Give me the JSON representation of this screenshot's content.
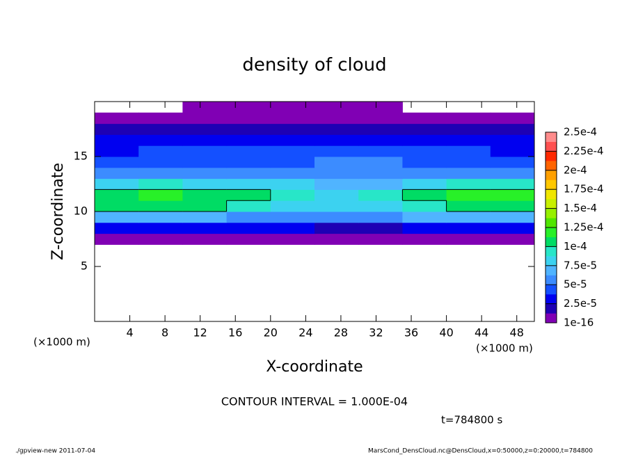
{
  "chart_data": {
    "type": "heatmap",
    "title": "density of cloud",
    "x_label": "X-coordinate",
    "y_label": "Z-coordinate",
    "x_unit": "(×1000 m)",
    "y_unit": "(×1000 m)",
    "contour_note": "CONTOUR INTERVAL = 1.000E-04",
    "time_note": "t=784800 s",
    "footer_left": "./gpview-new   2011-07-04",
    "footer_right": "MarsCond_DensCloud.nc@DensCloud,x=0:50000,z=0:20000,t=784800",
    "xlim": [
      0,
      50
    ],
    "xticks": [
      4,
      8,
      12,
      16,
      20,
      24,
      28,
      32,
      36,
      40,
      44,
      48
    ],
    "ylim": [
      0,
      20
    ],
    "yticks": [
      5,
      10,
      15
    ],
    "x": [
      2.5,
      7.5,
      12.5,
      17.5,
      22.5,
      27.5,
      32.5,
      37.5,
      42.5,
      47.5
    ],
    "y": [
      7.5,
      8.5,
      9.5,
      10.5,
      11.5,
      12.5,
      13.5,
      14.5,
      15.5,
      16.5,
      17.5,
      18.5,
      19.5
    ],
    "values": [
      [
        5e-06,
        5e-06,
        5e-06,
        5e-06,
        5e-06,
        5e-06,
        8e-06,
        5e-06,
        5e-06,
        5e-06
      ],
      [
        3e-05,
        2.5e-05,
        2.5e-05,
        2.5e-05,
        2.5e-05,
        2e-05,
        1.5e-05,
        2.5e-05,
        2.5e-05,
        3e-05
      ],
      [
        7e-05,
        6.5e-05,
        6.5e-05,
        6e-05,
        5.5e-05,
        5e-05,
        5e-05,
        6.5e-05,
        7e-05,
        7e-05
      ],
      [
        0.000105,
        0.000105,
        0.0001,
        9e-05,
        8.5e-05,
        8e-05,
        8e-05,
        9.5e-05,
        0.000105,
        0.000105
      ],
      [
        0.00011,
        0.000115,
        0.000105,
        0.0001,
        9.5e-05,
        8.5e-05,
        9e-05,
        0.000105,
        0.00012,
        0.000115
      ],
      [
        8e-05,
        9e-05,
        8.5e-05,
        8e-05,
        7.5e-05,
        7e-05,
        7e-05,
        8.5e-05,
        9.5e-05,
        9e-05
      ],
      [
        5.5e-05,
        6e-05,
        6e-05,
        6e-05,
        6e-05,
        5.5e-05,
        5.5e-05,
        6e-05,
        6e-05,
        5.5e-05
      ],
      [
        4e-05,
        4.5e-05,
        4.5e-05,
        4.5e-05,
        4.5e-05,
        5e-05,
        5e-05,
        4.5e-05,
        4.5e-05,
        4e-05
      ],
      [
        3.5e-05,
        4e-05,
        4e-05,
        4e-05,
        4e-05,
        4.5e-05,
        4.5e-05,
        4e-05,
        4e-05,
        3.5e-05
      ],
      [
        3e-05,
        3e-05,
        3e-05,
        3.5e-05,
        3.5e-05,
        3.5e-05,
        3.5e-05,
        3e-05,
        3e-05,
        3e-05
      ],
      [
        1.5e-05,
        1.5e-05,
        1.5e-05,
        1.5e-05,
        1.5e-05,
        1.5e-05,
        1.5e-05,
        1.5e-05,
        1.5e-05,
        1.5e-05
      ],
      [
        5e-06,
        5e-06,
        5e-06,
        5e-06,
        5e-06,
        5e-06,
        5e-06,
        5e-06,
        5e-06,
        5e-06
      ],
      [
        0,
        0,
        3e-06,
        2e-06,
        3e-06,
        3e-06,
        2e-06,
        0,
        0,
        0
      ]
    ],
    "levels": [
      {
        "value": 1e-16,
        "label": "1e-16"
      },
      {
        "value": 2.5e-05,
        "label": "2.5e-5"
      },
      {
        "value": 5e-05,
        "label": "5e-5"
      },
      {
        "value": 7.5e-05,
        "label": "7.5e-5"
      },
      {
        "value": 0.0001,
        "label": "1e-4"
      },
      {
        "value": 0.000125,
        "label": "1.25e-4"
      },
      {
        "value": 0.00015,
        "label": "1.5e-4"
      },
      {
        "value": 0.000175,
        "label": "1.75e-4"
      },
      {
        "value": 0.0002,
        "label": "2e-4"
      },
      {
        "value": 0.000225,
        "label": "2.25e-4"
      },
      {
        "value": 0.00025,
        "label": "2.5e-4"
      }
    ],
    "colors": [
      "#8000b4",
      "#1e00b4",
      "#0000f0",
      "#1450ff",
      "#3c8cff",
      "#50b4ff",
      "#3cd2f0",
      "#28e6c8",
      "#00dc64",
      "#28f028",
      "#50e600",
      "#96f000",
      "#c8f000",
      "#f0e600",
      "#ffc800",
      "#ffa000",
      "#ff6400",
      "#ff2800",
      "#ff5050",
      "#ff8c8c"
    ],
    "contour_color": "#000000"
  }
}
